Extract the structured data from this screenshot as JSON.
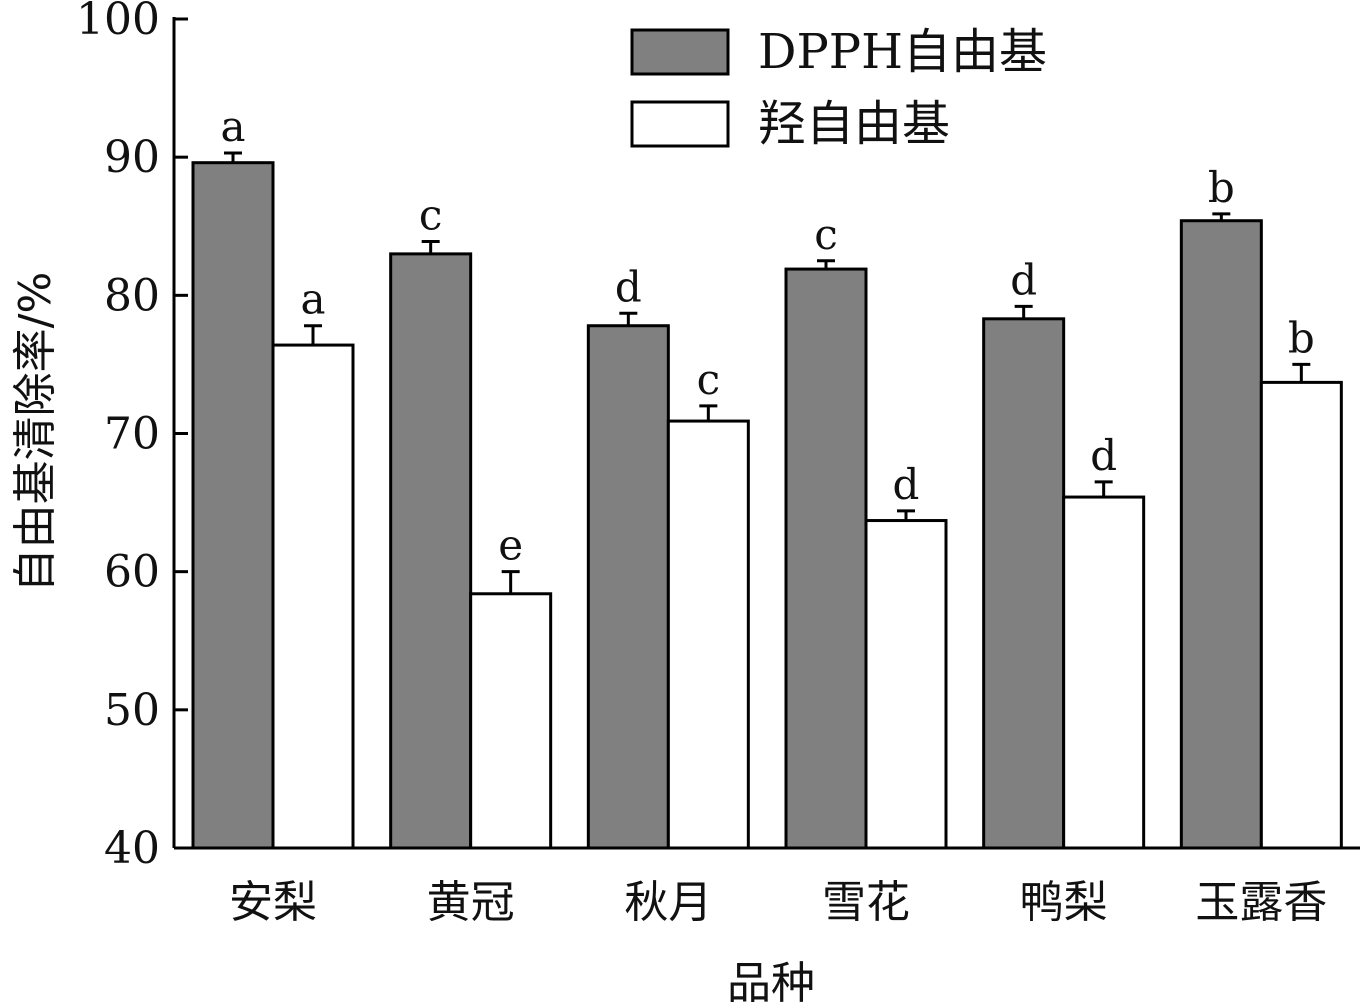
{
  "chart_data": {
    "type": "bar",
    "categories": [
      "安梨",
      "黄冠",
      "秋月",
      "雪花",
      "鸭梨",
      "玉露香"
    ],
    "series": [
      {
        "name": "DPPH自由基",
        "color": "#808080",
        "values": [
          89.6,
          83.0,
          77.8,
          81.9,
          78.3,
          85.4
        ],
        "errors": [
          0.7,
          0.9,
          0.9,
          0.6,
          0.9,
          0.5
        ],
        "letters": [
          "a",
          "c",
          "d",
          "c",
          "d",
          "b"
        ]
      },
      {
        "name": "羟自由基",
        "color": "#ffffff",
        "values": [
          76.4,
          58.4,
          70.9,
          63.7,
          65.4,
          73.7
        ],
        "errors": [
          1.4,
          1.6,
          1.1,
          0.7,
          1.1,
          1.3
        ],
        "letters": [
          "a",
          "e",
          "c",
          "d",
          "d",
          "b"
        ]
      }
    ],
    "xlabel": "品种",
    "ylabel": "自由基清除率/%",
    "ylim": [
      40,
      100
    ],
    "yticks": [
      40,
      50,
      60,
      70,
      80,
      90,
      100
    ],
    "grid": false,
    "legend_position": "top-right"
  }
}
